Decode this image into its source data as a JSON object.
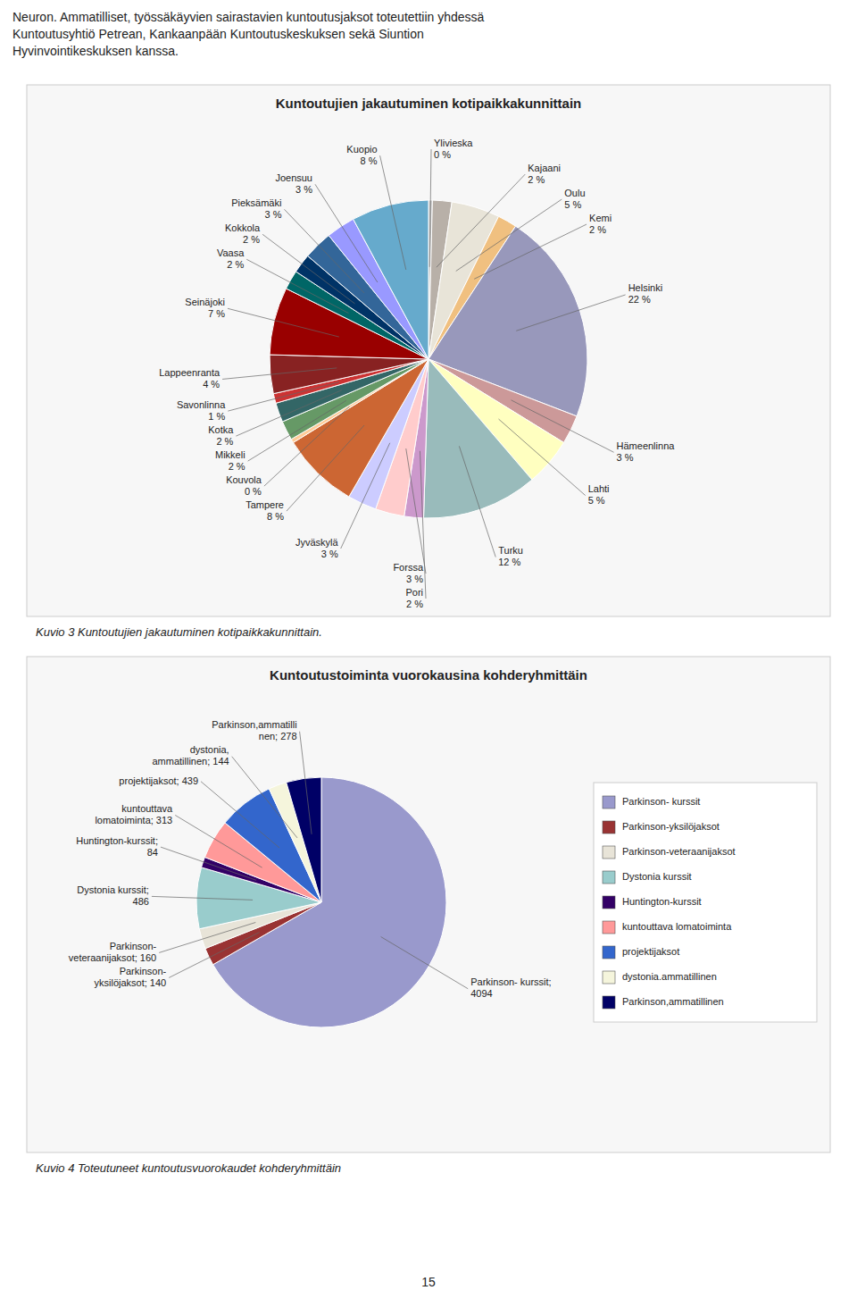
{
  "header": "Neuron. Ammatilliset, työssäkäyvien sairastavien kuntoutusjaksot toteutettiin yhdessä\nKuntoutusyhtiö Petrean, Kankaanpään Kuntoutuskeskuksen sekä Siuntion\nHyvinvointikeskuksen kanssa.",
  "chart_data": [
    {
      "type": "pie",
      "title": "Kuntoutujien jakautuminen kotipaikkakunnittain",
      "categories": [
        "Ylivieska",
        "Kajaani",
        "Oulu",
        "Kemi",
        "Helsinki",
        "Hämeenlinna",
        "Lahti",
        "Turku",
        "Pori",
        "Forssa",
        "Jyväskylä",
        "Tampere",
        "Kouvola",
        "Mikkeli",
        "Kotka",
        "Savonlinna",
        "Lappeenranta",
        "Seinäjoki",
        "Vaasa",
        "Kokkola",
        "Pieksämäki",
        "Joensuu",
        "Kuopio"
      ],
      "values": [
        0.4,
        2,
        5,
        2,
        22,
        3,
        5,
        12,
        2,
        3,
        3,
        8,
        0.4,
        2,
        2,
        1,
        4,
        7,
        2,
        2,
        3,
        3,
        8
      ],
      "value_labels": [
        "0 %",
        "2 %",
        "5 %",
        "2 %",
        "22 %",
        "3 %",
        "5 %",
        "12 %",
        "2 %",
        "3 %",
        "3 %",
        "8 %",
        "0 %",
        "2 %",
        "2 %",
        "1 %",
        "4 %",
        "7 %",
        "2 %",
        "2 %",
        "3 %",
        "3 %",
        "8 %"
      ],
      "colors": [
        "#c0c0c0",
        "#b8b0a8",
        "#e8e4d8",
        "#f0c080",
        "#9898bb",
        "#cc9999",
        "#ffffc0",
        "#99bbbb",
        "#cc99cc",
        "#ffcccc",
        "#ccccff",
        "#cc6633",
        "#ffcc99",
        "#669966",
        "#336666",
        "#cc3333",
        "#882222",
        "#990000",
        "#006666",
        "#003366",
        "#336699",
        "#9999ff",
        "#66aacc"
      ],
      "data_labels": true,
      "caption": "Kuvio 3 Kuntoutujien jakautuminen kotipaikkakunnittain."
    },
    {
      "type": "pie",
      "title": "Kuntoutustoiminta vuorokausina kohderyhmittäin",
      "categories": [
        "Parkinson- kurssit",
        "Parkinson-yksilöjaksot",
        "Parkinson-veteraanijaksot",
        "Dystonia kurssit",
        "Huntington-kurssit",
        "kuntouttava lomatoiminta",
        "projektijaksot",
        "dystonia.ammatillinen",
        "Parkinson,ammatillinen"
      ],
      "values": [
        4094,
        140,
        160,
        486,
        84,
        313,
        439,
        144,
        278
      ],
      "value_labels": [
        "Parkinson- kurssit;\n4094",
        "Parkinson-\nyksilöjaksot; 140",
        "Parkinson-\nveteraanijaksot; 160",
        "Dystonia kurssit;\n486",
        "Huntington-kurssit;\n84",
        "kuntouttava\nlomatoiminta; 313",
        "projektijaksot; 439",
        "dystonia,\nammatillinen; 144",
        "Parkinson,ammatilli\nnen; 278"
      ],
      "colors": [
        "#9999cc",
        "#993333",
        "#e8e4d8",
        "#99cccc",
        "#330066",
        "#ff9999",
        "#3366cc",
        "#f5f5dc",
        "#000066"
      ],
      "data_labels": true,
      "legend": "right",
      "caption": "Kuvio 4 Toteutuneet kuntoutusvuorokaudet kohderyhmittäin"
    }
  ],
  "footer": "15"
}
